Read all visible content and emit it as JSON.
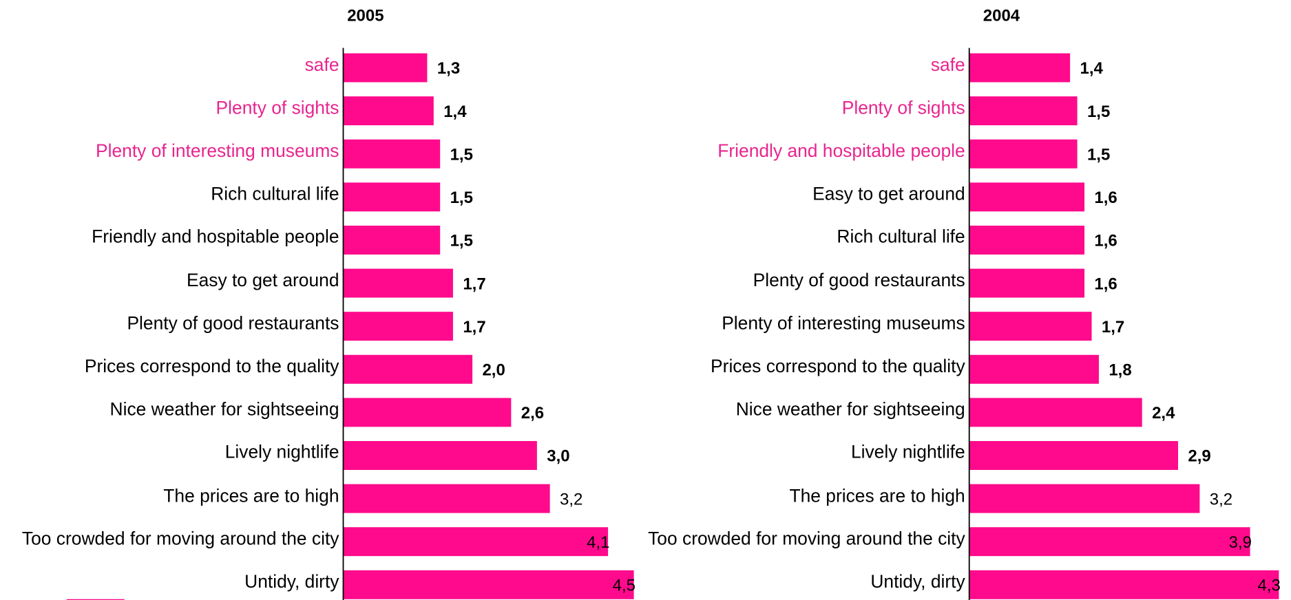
{
  "chart_data": [
    {
      "type": "bar",
      "orientation": "horizontal",
      "title": "2005",
      "color": "#ff0a8c",
      "categories": [
        "safe",
        "Plenty of  sights",
        "Plenty of interesting museums",
        "Rich cultural life",
        "Friendly and hospitable people",
        "Easy to get around",
        "Plenty of good restaurants",
        "Prices correspond to the quality",
        "Nice weather for sightseeing",
        "Lively nightlife",
        "The prices are to high",
        "Too crowded for moving around the city",
        "Untidy, dirty"
      ],
      "category_colors": [
        "#e8258f",
        "#e8258f",
        "#e8258f",
        "#000000",
        "#000000",
        "#000000",
        "#000000",
        "#000000",
        "#000000",
        "#000000",
        "#000000",
        "#000000",
        "#000000"
      ],
      "values": [
        1.3,
        1.4,
        1.5,
        1.5,
        1.5,
        1.7,
        1.7,
        2.0,
        2.6,
        3.0,
        3.2,
        4.1,
        4.5
      ],
      "value_labels": [
        "1,3",
        "1,4",
        "1,5",
        "1,5",
        "1,5",
        "1,7",
        "1,7",
        "2,0",
        "2,6",
        "3,0",
        "3,2",
        "4,1",
        "4,5"
      ]
    },
    {
      "type": "bar",
      "orientation": "horizontal",
      "title": "2004",
      "color": "#ff0a8c",
      "categories": [
        "safe",
        "Plenty of  sights",
        "Friendly and hospitable people",
        "Easy to get around",
        "Rich cultural life",
        "Plenty of good restaurants",
        "Plenty of interesting museums",
        "Prices correspond to the quality",
        "Nice weather for sightseeing",
        "Lively nightlife",
        "The prices are to high",
        "Too crowded for moving around the city",
        "Untidy, dirty"
      ],
      "category_colors": [
        "#e8258f",
        "#e8258f",
        "#e8258f",
        "#000000",
        "#000000",
        "#000000",
        "#000000",
        "#000000",
        "#000000",
        "#000000",
        "#000000",
        "#000000",
        "#000000"
      ],
      "values": [
        1.4,
        1.5,
        1.5,
        1.6,
        1.6,
        1.6,
        1.7,
        1.8,
        2.4,
        2.9,
        3.2,
        3.9,
        4.3
      ],
      "value_labels": [
        "1,4",
        "1,5",
        "1,5",
        "1,6",
        "1,6",
        "1,6",
        "1,7",
        "1,8",
        "2,4",
        "2,9",
        "3,2",
        "3,9",
        "4,3"
      ]
    }
  ]
}
